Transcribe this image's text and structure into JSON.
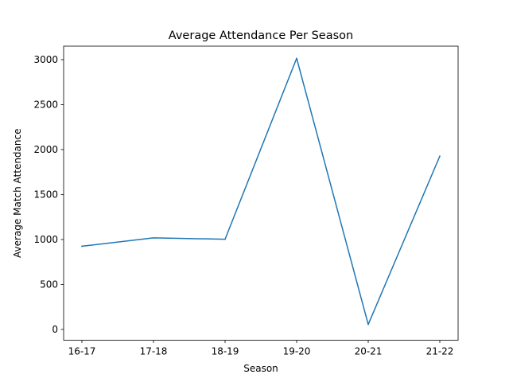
{
  "chart_data": {
    "type": "line",
    "title": "Average Attendance Per Season",
    "xlabel": "Season",
    "ylabel": "Average Match Attendance",
    "categories": [
      "16-17",
      "17-18",
      "18-19",
      "19-20",
      "20-21",
      "21-22"
    ],
    "series": [
      {
        "values": [
          925,
          1018,
          1003,
          3015,
          55,
          1927
        ]
      }
    ],
    "ylim": [
      -120,
      3150
    ],
    "yticks": [
      0,
      500,
      1000,
      1500,
      2000,
      2500,
      3000
    ],
    "yticklabels": [
      "0",
      "500",
      "1000",
      "1500",
      "2000",
      "2500",
      "3000"
    ],
    "grid": false,
    "line_color": "#1f77b4"
  }
}
